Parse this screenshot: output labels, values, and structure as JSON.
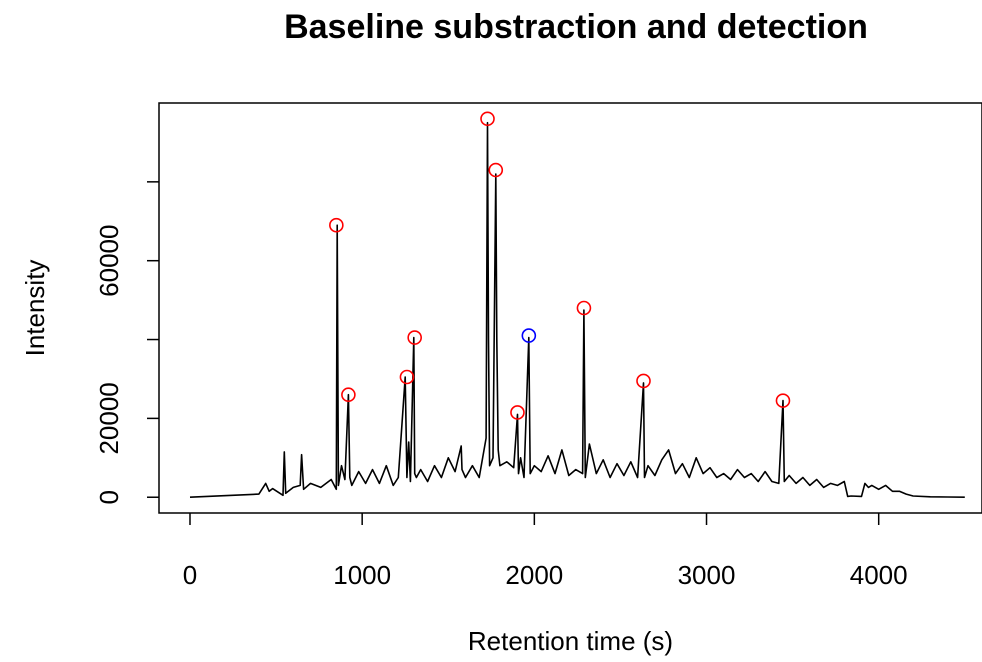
{
  "chart_data": {
    "type": "line",
    "title": "Baseline substraction and detection",
    "xlabel": "Retention time (s)",
    "ylabel": "Intensity",
    "xlim": [
      -180,
      4600
    ],
    "ylim": [
      -4000,
      100000
    ],
    "xticks": [
      0,
      1000,
      2000,
      3000,
      4000
    ],
    "yticks": [
      0,
      20000,
      60000
    ],
    "ytick_labels": [
      "0",
      "20000",
      "60000"
    ],
    "grid": false,
    "series": [
      {
        "line_color": "#000000",
        "x": [
          0,
          400,
          440,
          460,
          480,
          540,
          548,
          556,
          600,
          640,
          648,
          660,
          700,
          760,
          820,
          850,
          855,
          862,
          880,
          900,
          920,
          928,
          940,
          980,
          1020,
          1060,
          1100,
          1140,
          1180,
          1210,
          1250,
          1260,
          1270,
          1280,
          1300,
          1305,
          1315,
          1340,
          1380,
          1420,
          1460,
          1500,
          1540,
          1575,
          1580,
          1600,
          1640,
          1680,
          1720,
          1728,
          1734,
          1740,
          1760,
          1776,
          1782,
          1790,
          1800,
          1840,
          1880,
          1902,
          1908,
          1920,
          1940,
          1968,
          1976,
          2000,
          2040,
          2080,
          2120,
          2160,
          2200,
          2240,
          2280,
          2288,
          2296,
          2320,
          2360,
          2400,
          2440,
          2480,
          2520,
          2560,
          2600,
          2634,
          2640,
          2660,
          2700,
          2740,
          2780,
          2820,
          2860,
          2900,
          2940,
          2980,
          3020,
          3060,
          3100,
          3140,
          3180,
          3220,
          3260,
          3300,
          3340,
          3380,
          3420,
          3444,
          3452,
          3480,
          3520,
          3560,
          3600,
          3640,
          3680,
          3720,
          3760,
          3800,
          3820,
          3840,
          3900,
          3920,
          3940,
          3960,
          4000,
          4040,
          4080,
          4120,
          4160,
          4200,
          4300,
          4400,
          4500
        ],
        "y": [
          0,
          800,
          3500,
          1500,
          2200,
          500,
          11500,
          1000,
          2500,
          3000,
          10800,
          2000,
          3500,
          2500,
          4500,
          2000,
          69000,
          3000,
          8000,
          4500,
          26000,
          5000,
          3000,
          6500,
          3500,
          7000,
          3500,
          8000,
          3000,
          5000,
          30500,
          5000,
          14000,
          4000,
          40500,
          6000,
          5000,
          7000,
          4000,
          8000,
          5000,
          10000,
          6500,
          13000,
          7000,
          5000,
          8000,
          5000,
          15000,
          95000,
          40000,
          8000,
          10000,
          82000,
          40000,
          12000,
          8000,
          9000,
          7500,
          21000,
          6000,
          10000,
          5000,
          40500,
          6000,
          8000,
          6500,
          10500,
          6000,
          12000,
          5500,
          7000,
          6000,
          47500,
          5000,
          13500,
          6000,
          9500,
          5000,
          8500,
          5500,
          9000,
          5000,
          29000,
          5000,
          8000,
          5500,
          9500,
          12000,
          6000,
          8500,
          5000,
          10000,
          6000,
          7500,
          5000,
          6000,
          4500,
          7000,
          5000,
          6000,
          4000,
          6500,
          4000,
          3500,
          24500,
          4000,
          5500,
          3500,
          5000,
          3000,
          4500,
          2500,
          3500,
          3000,
          4000,
          200,
          300,
          200,
          3500,
          2500,
          3000,
          2000,
          3000,
          1500,
          1500,
          800,
          300,
          100,
          50,
          0
        ]
      }
    ],
    "peaks": {
      "red": {
        "color": "#ff0000",
        "x": [
          850,
          920,
          1260,
          1305,
          1728,
          1776,
          1902,
          2288,
          2634,
          3444
        ],
        "y": [
          69000,
          26000,
          30500,
          40500,
          96000,
          83000,
          21500,
          48000,
          29500,
          24500
        ]
      },
      "blue": {
        "color": "#0000ff",
        "x": [
          1968
        ],
        "y": [
          41000
        ]
      }
    }
  }
}
